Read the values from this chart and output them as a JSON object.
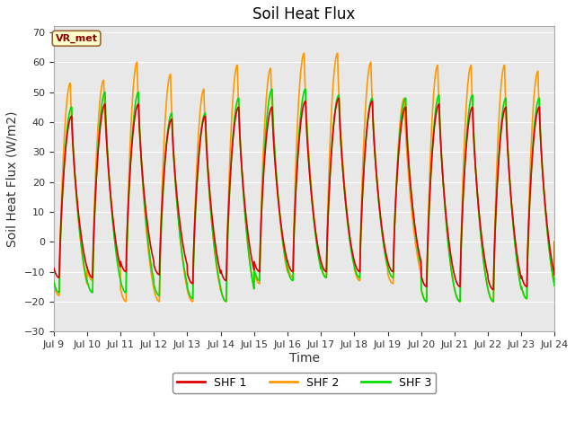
{
  "title": "Soil Heat Flux",
  "ylabel": "Soil Heat Flux (W/m2)",
  "xlabel": "Time",
  "ylim": [
    -30,
    72
  ],
  "yticks": [
    -30,
    -20,
    -10,
    0,
    10,
    20,
    30,
    40,
    50,
    60,
    70
  ],
  "xlim_days": [
    9,
    24
  ],
  "xtick_days": [
    9,
    10,
    11,
    12,
    13,
    14,
    15,
    16,
    17,
    18,
    19,
    20,
    21,
    22,
    23,
    24
  ],
  "xtick_labels": [
    "Jul 9",
    "Jul 10",
    "Jul 11",
    "Jul 12",
    "Jul 13",
    "Jul 14",
    "Jul 15",
    "Jul 16",
    "Jul 17",
    "Jul 18",
    "Jul 19",
    "Jul 20",
    "Jul 21",
    "Jul 22",
    "Jul 23",
    "Jul 24"
  ],
  "color_shf1": "#dd0000",
  "color_shf2": "#ff9900",
  "color_shf3": "#00dd00",
  "annotation_text": "VR_met",
  "bg_color": "#ffffff",
  "plot_bg_color": "#e8e8e8",
  "title_fontsize": 12,
  "label_fontsize": 10,
  "tick_fontsize": 8,
  "line_width": 1.2,
  "num_days": 15,
  "shf2_amplitudes": [
    53,
    54,
    60,
    56,
    51,
    59,
    58,
    63,
    63,
    60,
    48,
    59,
    59,
    59,
    57
  ],
  "shf3_amplitudes": [
    45,
    50,
    50,
    43,
    43,
    48,
    51,
    51,
    49,
    48,
    48,
    49,
    49,
    48,
    48
  ],
  "shf1_amplitudes": [
    42,
    46,
    46,
    41,
    42,
    45,
    45,
    47,
    48,
    47,
    45,
    46,
    45,
    45,
    45
  ],
  "shf2_mins": [
    -18,
    -13,
    -20,
    -20,
    -20,
    -20,
    -14,
    -12,
    -12,
    -13,
    -14,
    -20,
    -20,
    -20,
    -19
  ],
  "shf3_mins": [
    -17,
    -17,
    -17,
    -18,
    -19,
    -20,
    -13,
    -13,
    -12,
    -12,
    -12,
    -20,
    -20,
    -20,
    -19
  ],
  "shf1_mins": [
    -12,
    -12,
    -10,
    -11,
    -14,
    -13,
    -10,
    -10,
    -10,
    -10,
    -10,
    -15,
    -15,
    -16,
    -15
  ],
  "peak_hour_shf1": 13,
  "peak_hour_shf2": 12,
  "peak_hour_shf3": 13,
  "trough_hour": 4
}
